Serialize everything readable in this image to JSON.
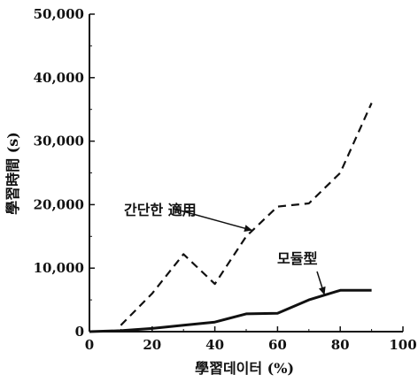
{
  "chart_data": {
    "type": "line",
    "xlabel": "學習데이터 (%)",
    "ylabel": "學習時間 (s)",
    "xlim": [
      0,
      100
    ],
    "ylim": [
      0,
      50000
    ],
    "x_ticks": [
      0,
      20,
      40,
      60,
      80,
      100
    ],
    "x_tick_labels": [
      "0",
      "20",
      "40",
      "60",
      "80",
      "100"
    ],
    "y_ticks": [
      0,
      10000,
      20000,
      30000,
      40000,
      50000
    ],
    "y_tick_labels": [
      "0",
      "10,000",
      "20,000",
      "30,000",
      "40,000",
      "50,000"
    ],
    "grid": false,
    "legend": "none",
    "series": [
      {
        "name": "간단한 適用",
        "style": "dashed",
        "color": "#111111",
        "x": [
          10,
          20,
          30,
          40,
          50,
          60,
          70,
          80,
          90
        ],
        "y": [
          1000,
          6000,
          12200,
          7500,
          15000,
          19700,
          20200,
          25000,
          36000
        ]
      },
      {
        "name": "모듈型",
        "style": "solid",
        "color": "#111111",
        "x": [
          0,
          10,
          20,
          30,
          40,
          50,
          60,
          70,
          80,
          90
        ],
        "y": [
          0,
          150,
          500,
          1000,
          1500,
          2800,
          2900,
          5000,
          6500,
          6500
        ]
      }
    ],
    "annotations": [
      {
        "text": "간단한 適用",
        "series": 0,
        "arrow_to_x": 52
      },
      {
        "text": "모듈型",
        "series": 1,
        "arrow_to_x": 75
      }
    ]
  }
}
